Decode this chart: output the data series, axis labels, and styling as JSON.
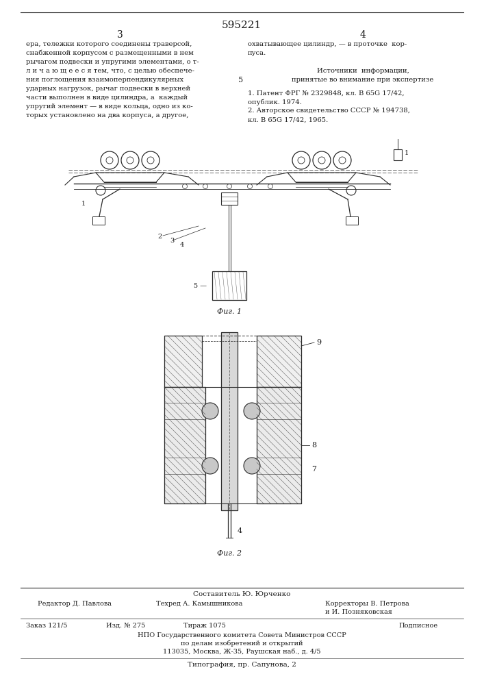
{
  "patent_number": "595221",
  "background_color": "#ffffff",
  "text_color": "#1a1a1a",
  "line_color": "#2a2a2a",
  "fig1_label": "Фиг. 1",
  "fig2_label": "Фиг. 2",
  "col1_lines": [
    "ера, тележки которого соединены траверсой,",
    "снабженной корпусом с размещенными в нем",
    "рычагом подвески и упругими элементами, о т-",
    "л и ч а ю щ е е с я тем, что, с целью обеспече-",
    "ния поглощения взаимоперпендикулярных",
    "ударных нагрузок, рычаг подвески в верхней",
    "части выполнен в виде цилиндра, а  каждый",
    "упругий элемент — в виде кольца, одно из ко-",
    "торых установлено на два корпуса, а другое,"
  ],
  "col2_lines_a": [
    "охватывающее цилиндр, — в проточке  кор-",
    "пуса."
  ],
  "sources_header1": "Источники  информации,",
  "sources_header2": "принятые во внимание при экспертизе",
  "sources_refs": [
    "1. Патент ФРГ № 2329848, кл. В 65G 17/42,",
    "опублик. 1974.",
    "2. Авторское свидетельство СССР № 194738,",
    "кл. В 65G 17/42, 1965."
  ],
  "footer_composer": "Составитель Ю. Юрченко",
  "footer_editor": "Редактор Д. Павлова",
  "footer_tech": "Техред А. Камышникова",
  "footer_corr1": "Корректоры В. Петрова",
  "footer_corr2": "и И. Позняковская",
  "footer_order": "Заказ 121/5",
  "footer_ind": "Изд. № 275",
  "footer_tirazh": "Тираж 1075",
  "footer_podpis": "Подписное",
  "footer_org1": "НПО Государственного комитета Совета Министров СССР",
  "footer_org2": "по делам изобретений и открытий",
  "footer_org3": "113035, Москва, Ж-35, Раушская наб., д. 4/5",
  "footer_tipografia": "Типография, пр. Сапунова, 2"
}
